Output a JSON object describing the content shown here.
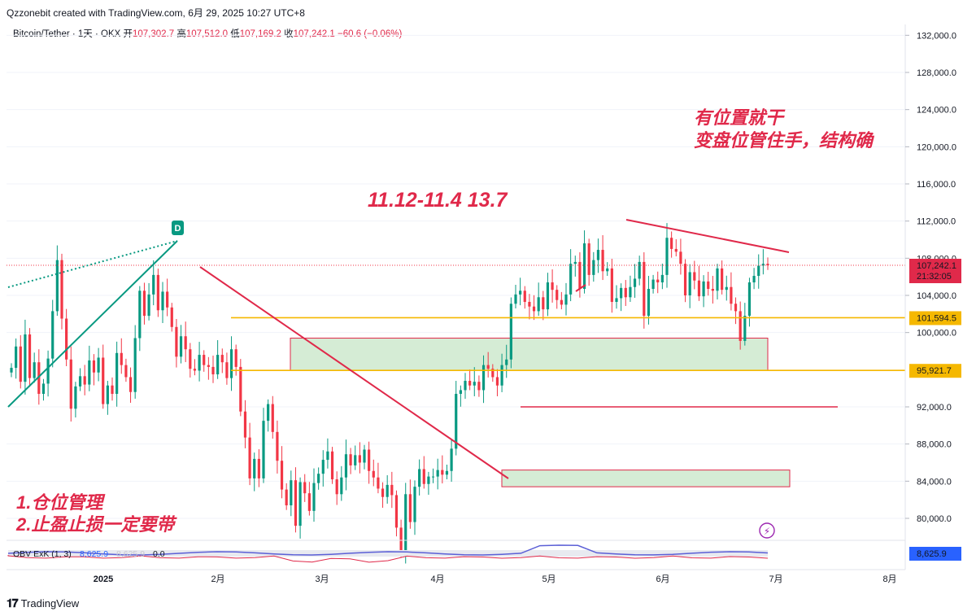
{
  "header": {
    "caption": "Qzzonebit created with TradingView.com, 6月 29, 2025 10:27 UTC+8",
    "symbol": "Bitcoin/Tether · 1天 · OKX",
    "open_label": "开",
    "open": "107,302.7",
    "high_label": "高",
    "high": "107,512.0",
    "low_label": "低",
    "low": "107,169.2",
    "close_label": "收",
    "close": "107,242.1",
    "change": "−60.6 (−0.06%)"
  },
  "chart_data": {
    "type": "candlestick",
    "title": "",
    "xlabel": "",
    "ylabel": "",
    "ylim": [
      77000,
      133500
    ],
    "y_ticks": [
      "132,000.0",
      "128,000.0",
      "124,000.0",
      "120,000.0",
      "116,000.0",
      "112,000.0",
      "108,000.0",
      "104,000.0",
      "100,000.0",
      "92,000.0",
      "88,000.0",
      "84,000.0",
      "80,000.0"
    ],
    "x_ticks": [
      "2025",
      "2月",
      "3月",
      "4月",
      "5月",
      "6月",
      "7月",
      "8月"
    ],
    "price_tags": [
      {
        "label": "107,242.1",
        "sub": "21:32:05",
        "color": "#e0294a"
      },
      {
        "label": "101,594.5",
        "color": "#f5b800"
      },
      {
        "label": "95,921.7",
        "color": "#f5b800"
      }
    ],
    "close_series": [
      96200,
      98500,
      94700,
      99800,
      95100,
      96800,
      93400,
      94500,
      97200,
      102300,
      107800,
      101500,
      97100,
      91800,
      94200,
      95300,
      94400,
      97000,
      95700,
      97300,
      92300,
      94300,
      93400,
      97800,
      96500,
      95200,
      93600,
      99400,
      104500,
      101800,
      104100,
      106200,
      102400,
      104400,
      102700,
      100600,
      97400,
      99600,
      98200,
      96100,
      95900,
      97600,
      96500,
      96300,
      95500,
      97600,
      96800,
      95100,
      98200,
      96300,
      91500,
      88700,
      84300,
      86400,
      84300,
      90500,
      92300,
      89300,
      86200,
      83100,
      81400,
      84100,
      79200,
      83900,
      82700,
      80800,
      83800,
      84800,
      86300,
      87200,
      84200,
      82600,
      84400,
      86900,
      85700,
      86800,
      86000,
      87400,
      85100,
      84400,
      83200,
      82300,
      83600,
      82500,
      79000,
      76300,
      82600,
      79600,
      83400,
      85300,
      83700,
      84500,
      84500,
      85200,
      84700,
      85100,
      87500,
      93400,
      93800,
      94800,
      94300,
      94700,
      93800,
      96500,
      96100,
      95200,
      94300,
      96500,
      97100,
      103100,
      104100,
      104500,
      103300,
      102800,
      102300,
      103800,
      102500,
      105400,
      104600,
      103500,
      103000,
      104100,
      107400,
      107600,
      104700,
      109600,
      106200,
      107800,
      108900,
      106600,
      106900,
      103300,
      103700,
      104800,
      103800,
      104900,
      105800,
      107600,
      101800,
      104700,
      105700,
      105400,
      106200,
      110200,
      109000,
      108700,
      107400,
      104000,
      106500,
      105600,
      103900,
      105500,
      104700,
      104500,
      106900,
      104600,
      104900,
      103100,
      102300,
      99100,
      101800,
      105400,
      106100,
      107200,
      107400,
      107242
    ],
    "annotations": [
      {
        "text": "11.12-11.4    13.7",
        "color": "#e0294a"
      },
      {
        "text": "有位置就干",
        "color": "#e0294a"
      },
      {
        "text": "变盘位管住手，结构确",
        "color": "#e0294a"
      },
      {
        "text": "1.仓位管理",
        "color": "#e0294a"
      },
      {
        "text": "2.止盈止损一定要带",
        "color": "#e0294a"
      }
    ],
    "obv": {
      "label": "OBV ExK (1, 3)",
      "value1": "8,625.9",
      "value2": "8,625.9",
      "value3": "0.0",
      "tag": "8,625.9"
    },
    "marker": "D",
    "colors": {
      "up": "#089981",
      "down": "#f23645",
      "zone": "#d5ecd5",
      "zone_border": "#e0294a",
      "level": "#f5b800",
      "trend": "#e0294a",
      "support": "#089981"
    }
  },
  "footer": {
    "brand": "TradingView"
  }
}
